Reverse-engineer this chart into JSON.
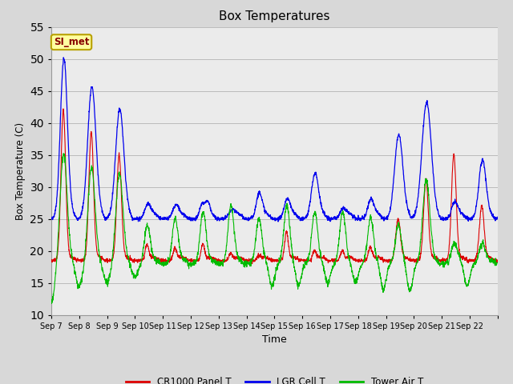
{
  "title": "Box Temperatures",
  "xlabel": "Time",
  "ylabel": "Box Temperature (C)",
  "ylim": [
    10,
    55
  ],
  "yticks": [
    10,
    15,
    20,
    25,
    30,
    35,
    40,
    45,
    50,
    55
  ],
  "bg_color": "#d8d8d8",
  "plot_bg_color": "#ebebeb",
  "annotation_text": "SI_met",
  "annotation_bg": "#ffffa0",
  "annotation_border": "#b8a000",
  "annotation_text_color": "#880000",
  "line_colors": {
    "panel": "#dd0000",
    "lgr": "#0000ee",
    "tower": "#00bb00"
  },
  "legend_labels": [
    "CR1000 Panel T",
    "LGR Cell T",
    "Tower Air T"
  ],
  "x_labels": [
    "Sep 7",
    "Sep 8",
    "Sep 9",
    "Sep 10",
    "Sep 11",
    "Sep 12",
    "Sep 13",
    "Sep 14",
    "Sep 15",
    "Sep 16",
    "Sep 17",
    "Sep 18",
    "Sep 19",
    "Sep 20",
    "Sep 21",
    "Sep 22"
  ],
  "num_days": 16,
  "pts_per_day": 144,
  "panel_base": 18.5,
  "lgr_base": 25.0,
  "tower_base": 18.0
}
